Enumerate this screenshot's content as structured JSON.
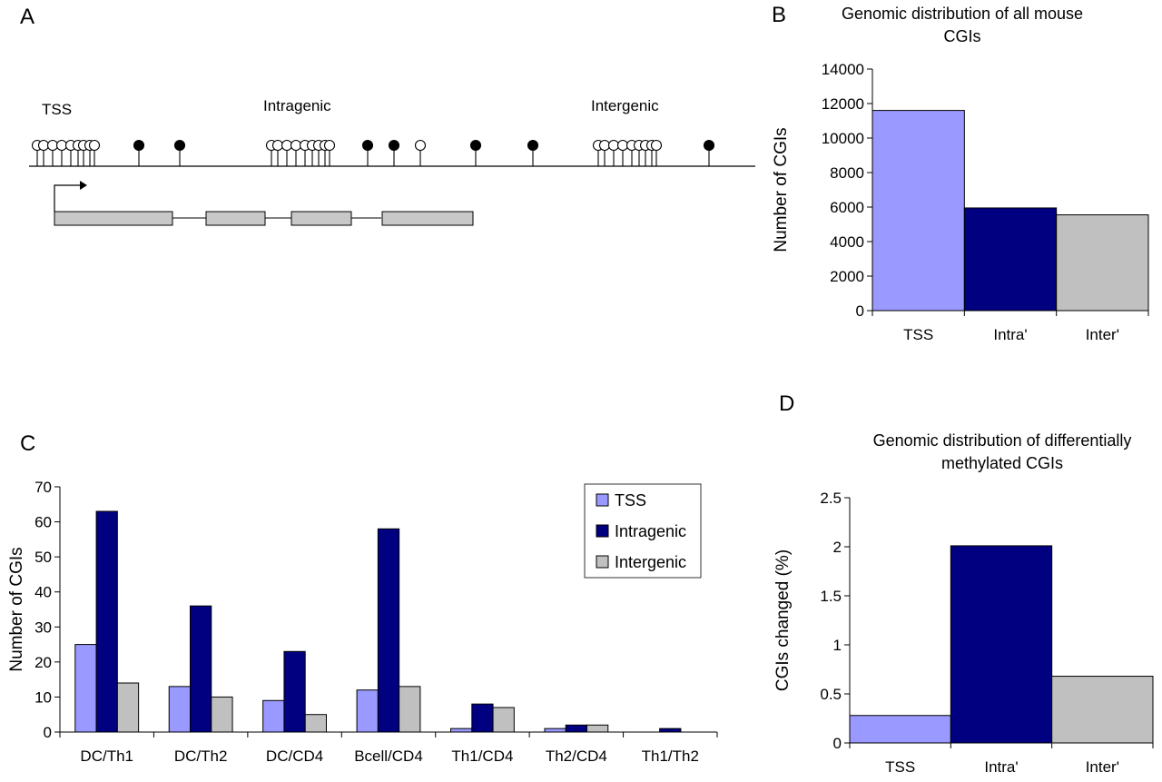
{
  "panels": {
    "a": "A",
    "b": "B",
    "c": "C",
    "d": "D"
  },
  "diagram": {
    "labels": [
      "TSS",
      "Intragenic",
      "Intergenic"
    ]
  },
  "colors": {
    "TSS": "#9999ff",
    "Intragenic": "#000080",
    "Intergenic": "#c0c0c0"
  },
  "chart_data": [
    {
      "id": "B",
      "type": "bar",
      "title_lines": [
        "Genomic distribution of all mouse",
        "CGIs"
      ],
      "ylabel": "Number of CGIs",
      "xlabel": "",
      "categories": [
        "TSS",
        "Intra'",
        "Inter'"
      ],
      "values": [
        11600,
        5950,
        5550
      ],
      "ylim": [
        0,
        14000
      ],
      "yticks": [
        0,
        2000,
        4000,
        6000,
        8000,
        10000,
        12000,
        14000
      ],
      "grid": false,
      "legend": "none"
    },
    {
      "id": "C",
      "type": "bar",
      "ylabel": "Number of CGIs",
      "xlabel": "",
      "categories": [
        "DC/Th1",
        "DC/Th2",
        "DC/CD4",
        "Bcell/CD4",
        "Th1/CD4",
        "Th2/CD4",
        "Th1/Th2"
      ],
      "series": [
        {
          "name": "TSS",
          "values": [
            25,
            13,
            9,
            12,
            1,
            1,
            0
          ]
        },
        {
          "name": "Intragenic",
          "values": [
            63,
            36,
            23,
            58,
            8,
            2,
            1
          ]
        },
        {
          "name": "Intergenic",
          "values": [
            14,
            10,
            5,
            13,
            7,
            2,
            0
          ]
        }
      ],
      "ylim": [
        0,
        70
      ],
      "yticks": [
        0,
        10,
        20,
        30,
        40,
        50,
        60,
        70
      ],
      "grid": false,
      "legend": "top-right"
    },
    {
      "id": "D",
      "type": "bar",
      "title_lines": [
        "Genomic distribution of differentially",
        "methylated CGIs"
      ],
      "ylabel": "CGIs changed (%)",
      "xlabel": "",
      "categories": [
        "TSS",
        "Intra'",
        "Inter'"
      ],
      "values": [
        0.28,
        2.01,
        0.68
      ],
      "ylim": [
        0,
        2.5
      ],
      "yticks": [
        0,
        0.5,
        1,
        1.5,
        2,
        2.5
      ],
      "grid": false,
      "legend": "none"
    }
  ]
}
